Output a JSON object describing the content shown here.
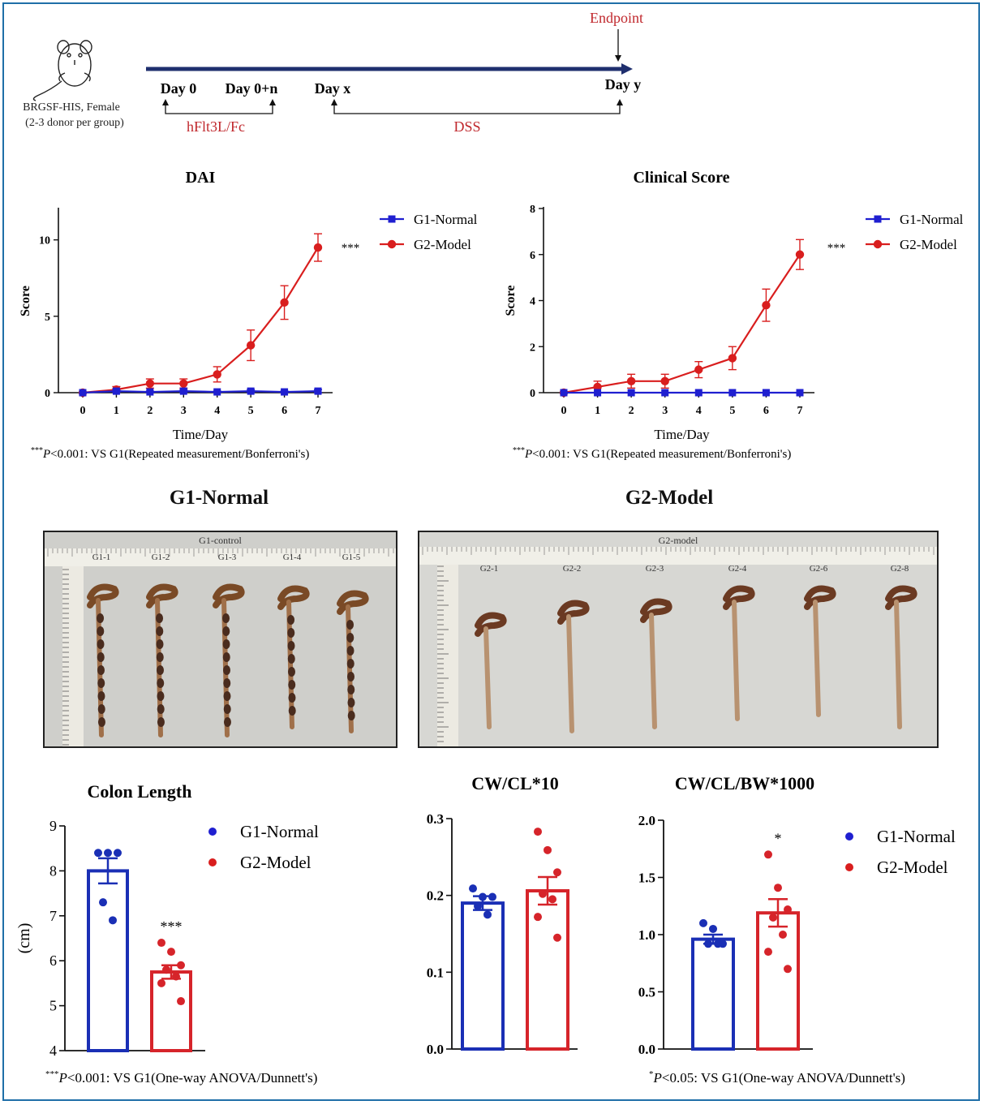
{
  "timeline": {
    "mouse_caption_1": "BRGSF-HIS, Female",
    "mouse_caption_2": "(2-3 donor per group)",
    "endpoint": "Endpoint",
    "day0": "Day 0",
    "day0n": "Day 0+n",
    "dayx": "Day x",
    "dayy": "Day y",
    "treatment": "hFlt3L/Fc",
    "dss": "DSS"
  },
  "colors": {
    "g1": "#1f1fd0",
    "g2": "#d91e1e",
    "title_red": "#c0282d",
    "bar_g1": "#1a2fb5",
    "bar_g2": "#d6242a"
  },
  "footnotes": {
    "dai": "P<0.001: VS G1(Repeated measurement/Bonferroni's)",
    "clinical": "P<0.001: VS G1(Repeated measurement/Bonferroni's)",
    "colon": "P<0.001: VS G1(One-way ANOVA/Dunnett's)",
    "bw": "P<0.05: VS G1(One-way ANOVA/Dunnett's)",
    "star3": "***",
    "star1": "*"
  },
  "photos": {
    "g1_title": "G1-Normal",
    "g2_title": "G2-Model",
    "g1_header": "G1-control",
    "g2_header": "G2-model",
    "g1_labels": [
      "G1-1",
      "G1-2",
      "G1-3",
      "G1-4",
      "G1-5"
    ],
    "g2_labels": [
      "G2-1",
      "G2-2",
      "G2-3",
      "G2-4",
      "G2-6",
      "G2-8"
    ]
  },
  "chart_data": [
    {
      "id": "dai",
      "type": "line",
      "title": "DAI",
      "xlabel": "Time/Day",
      "ylabel": "Score",
      "x": [
        0,
        1,
        2,
        3,
        4,
        5,
        6,
        7
      ],
      "ylim": [
        0,
        12
      ],
      "yticks": [
        0,
        5,
        10
      ],
      "significance": "***",
      "series": [
        {
          "name": "G1-Normal",
          "values": [
            0,
            0.1,
            0.05,
            0.1,
            0.05,
            0.1,
            0.05,
            0.1
          ],
          "errors": [
            0,
            0.1,
            0.05,
            0.1,
            0.05,
            0.1,
            0.05,
            0.1
          ]
        },
        {
          "name": "G2-Model",
          "values": [
            0,
            0.2,
            0.6,
            0.6,
            1.2,
            3.1,
            5.9,
            9.5
          ],
          "errors": [
            0,
            0.2,
            0.3,
            0.3,
            0.5,
            1.0,
            1.1,
            0.9
          ]
        }
      ]
    },
    {
      "id": "clinical",
      "type": "line",
      "title": "Clinical Score",
      "xlabel": "Time/Day",
      "ylabel": "Score",
      "x": [
        0,
        1,
        2,
        3,
        4,
        5,
        6,
        7
      ],
      "ylim": [
        0,
        8
      ],
      "yticks": [
        0,
        2,
        4,
        6,
        8
      ],
      "significance": "***",
      "series": [
        {
          "name": "G1-Normal",
          "values": [
            0,
            0,
            0,
            0,
            0,
            0,
            0,
            0
          ],
          "errors": [
            0,
            0,
            0,
            0,
            0,
            0,
            0,
            0
          ]
        },
        {
          "name": "G2-Model",
          "values": [
            0,
            0.25,
            0.5,
            0.5,
            1.0,
            1.5,
            3.8,
            6.0
          ],
          "errors": [
            0,
            0.25,
            0.3,
            0.3,
            0.35,
            0.5,
            0.7,
            0.65
          ]
        }
      ]
    },
    {
      "id": "colon",
      "type": "bar",
      "title": "Colon Length",
      "ylabel": "(cm)",
      "categories": [
        "G1-Normal",
        "G2-Model"
      ],
      "values": [
        8.0,
        5.75
      ],
      "errors": [
        0.28,
        0.15
      ],
      "ylim": [
        4,
        9
      ],
      "yticks": [
        4,
        5,
        6,
        7,
        8,
        9
      ],
      "points": [
        [
          8.4,
          8.4,
          8.4,
          7.3,
          6.9
        ],
        [
          6.4,
          6.2,
          5.9,
          5.8,
          5.65,
          5.5,
          5.1
        ]
      ],
      "significance": [
        "",
        "***"
      ]
    },
    {
      "id": "cwcl",
      "type": "bar",
      "title": "CW/CL*10",
      "categories": [
        "G1-Normal",
        "G2-Model"
      ],
      "values": [
        0.19,
        0.206
      ],
      "errors": [
        0.009,
        0.018
      ],
      "ylim": [
        0,
        0.3
      ],
      "yticks": [
        0.0,
        0.1,
        0.2,
        0.3
      ],
      "points": [
        [
          0.209,
          0.198,
          0.198,
          0.186,
          0.175
        ],
        [
          0.283,
          0.259,
          0.23,
          0.202,
          0.195,
          0.172,
          0.145
        ]
      ],
      "significance": [
        "",
        ""
      ]
    },
    {
      "id": "cwclbw",
      "type": "bar",
      "title": "CW/CL/BW*1000",
      "categories": [
        "G1-Normal",
        "G2-Model"
      ],
      "values": [
        0.96,
        1.19
      ],
      "errors": [
        0.04,
        0.12
      ],
      "ylim": [
        0,
        2.0
      ],
      "yticks": [
        0.0,
        0.5,
        1.0,
        1.5,
        2.0
      ],
      "points": [
        [
          1.1,
          1.05,
          0.92,
          0.92,
          0.92
        ],
        [
          1.7,
          1.41,
          1.22,
          1.15,
          1.0,
          0.85,
          0.7
        ]
      ],
      "significance": [
        "",
        "*"
      ],
      "legend": [
        "G1-Normal",
        "G2-Model"
      ]
    }
  ]
}
